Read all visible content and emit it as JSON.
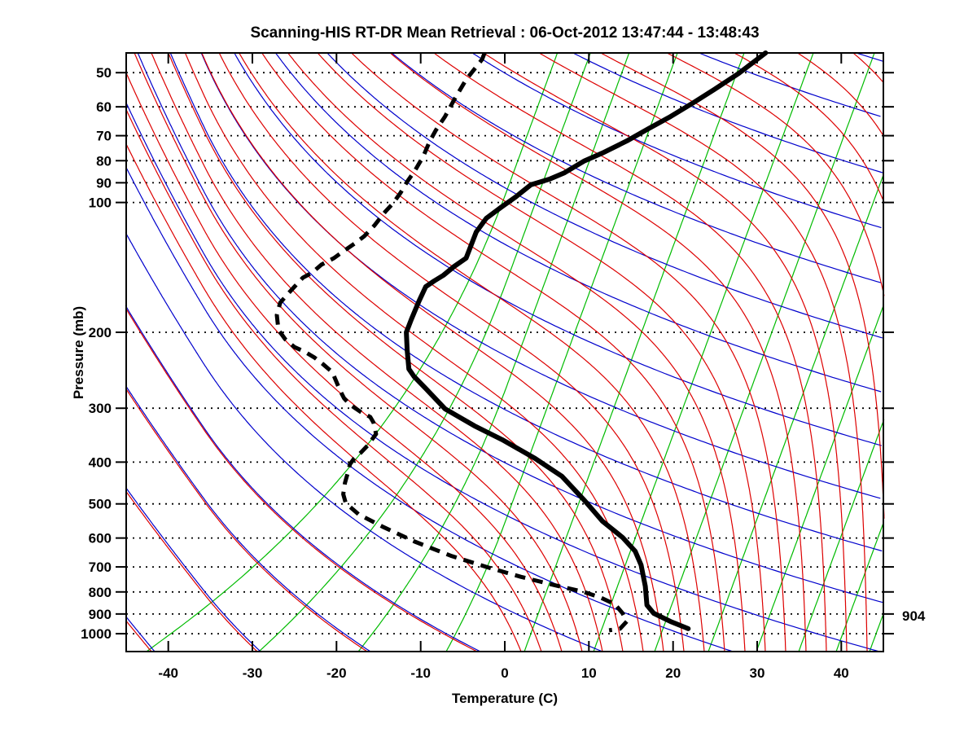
{
  "title": "Scanning-HIS RT-DR Mean Retrieval : 06-Oct-2012 13:47:44 - 13:48:43",
  "x_axis": {
    "label": "Temperature (C)",
    "ticks": [
      -40,
      -30,
      -20,
      -10,
      0,
      10,
      20,
      30,
      40
    ],
    "range": [
      -45,
      45
    ]
  },
  "y_axis": {
    "label": "Pressure (mb)",
    "ticks": [
      50,
      60,
      70,
      80,
      90,
      100,
      200,
      300,
      400,
      500,
      600,
      700,
      800,
      900,
      1000
    ],
    "range": [
      45,
      1100
    ],
    "scale": "log"
  },
  "annotation": {
    "text": "904"
  },
  "colors": {
    "profile_lines": "#000000",
    "red_lines": "#dd0000",
    "blue_lines": "#0000cc",
    "green_lines": "#00bb00",
    "grid_dots": "#000000",
    "background": "#ffffff"
  },
  "chart_data": {
    "type": "line",
    "subtype": "skew-T log-p atmospheric sounding",
    "title": "Scanning-HIS RT-DR Mean Retrieval : 06-Oct-2012 13:47:44 - 13:48:43",
    "xlabel": "Temperature (C)",
    "ylabel": "Pressure (mb)",
    "x_range_C": [
      -45,
      45
    ],
    "pressure_range_mb": [
      45,
      1100
    ],
    "y_scale": "log",
    "grid": "dotted horizontal isobars at labeled pressures",
    "background_lines": "red / blue adiabat pairs (merging when cold), green skewed isopleths",
    "surface_pressure_label": "904",
    "note": "points are [pressure_mb, temperature_C as plotted against skewed x-axis]",
    "series": [
      {
        "name": "Temperature (thick solid)",
        "style": "solid",
        "points": [
          [
            45,
            31.0
          ],
          [
            50.2,
            27.8
          ],
          [
            54.7,
            24.9
          ],
          [
            58.9,
            22.3
          ],
          [
            63.2,
            19.7
          ],
          [
            67.4,
            17.1
          ],
          [
            72,
            14.5
          ],
          [
            76.8,
            11.6
          ],
          [
            80.2,
            9.4
          ],
          [
            85.3,
            7.1
          ],
          [
            88.3,
            5.3
          ],
          [
            91,
            3.1
          ],
          [
            97.1,
            1.3
          ],
          [
            102.8,
            -0.5
          ],
          [
            108.8,
            -2.2
          ],
          [
            117.1,
            -3.4
          ],
          [
            134.6,
            -4.6
          ],
          [
            140.6,
            -6.0
          ],
          [
            147.5,
            -7.3
          ],
          [
            152.1,
            -8.4
          ],
          [
            156.8,
            -9.4
          ],
          [
            169.4,
            -10.2
          ],
          [
            186.5,
            -11.1
          ],
          [
            200,
            -11.7
          ],
          [
            220,
            -11.6
          ],
          [
            243.3,
            -11.4
          ],
          [
            253,
            -10.8
          ],
          [
            270,
            -9.4
          ],
          [
            301,
            -7.1
          ],
          [
            329.6,
            -3.6
          ],
          [
            354.9,
            -0.3
          ],
          [
            392.2,
            3.6
          ],
          [
            431.7,
            6.8
          ],
          [
            491.7,
            9.5
          ],
          [
            548.2,
            11.6
          ],
          [
            598.2,
            14.0
          ],
          [
            643.9,
            15.5
          ],
          [
            692.7,
            16.2
          ],
          [
            776.2,
            16.7
          ],
          [
            858.4,
            16.9
          ],
          [
            896.7,
            17.7
          ],
          [
            936.8,
            19.7
          ],
          [
            973.5,
            21.8
          ]
        ]
      },
      {
        "name": "Dew point (thick dashed)",
        "style": "dashed",
        "points": [
          [
            45,
            -2.4
          ],
          [
            46.6,
            -2.7
          ],
          [
            51.9,
            -4.6
          ],
          [
            57.7,
            -6.0
          ],
          [
            63.2,
            -7.1
          ],
          [
            68,
            -8.2
          ],
          [
            72,
            -8.9
          ],
          [
            78.2,
            -9.7
          ],
          [
            84.5,
            -10.7
          ],
          [
            89.5,
            -11.6
          ],
          [
            95,
            -12.4
          ],
          [
            100.5,
            -13.3
          ],
          [
            105,
            -14.2
          ],
          [
            113.1,
            -15.5
          ],
          [
            119.7,
            -16.7
          ],
          [
            123.9,
            -17.7
          ],
          [
            129.4,
            -19.1
          ],
          [
            134.6,
            -20.3
          ],
          [
            139.4,
            -21.8
          ],
          [
            145.5,
            -22.9
          ],
          [
            149.4,
            -24.0
          ],
          [
            156.8,
            -25.0
          ],
          [
            163.9,
            -25.9
          ],
          [
            170.9,
            -26.7
          ],
          [
            182.5,
            -27.1
          ],
          [
            197.4,
            -26.9
          ],
          [
            207.5,
            -26.1
          ],
          [
            216.5,
            -25.0
          ],
          [
            222.3,
            -23.7
          ],
          [
            229.1,
            -22.6
          ],
          [
            237.2,
            -21.6
          ],
          [
            247.5,
            -20.5
          ],
          [
            260.8,
            -20.0
          ],
          [
            272.3,
            -19.6
          ],
          [
            284.4,
            -19.1
          ],
          [
            294.4,
            -18.4
          ],
          [
            306.1,
            -17.1
          ],
          [
            314.2,
            -16.0
          ],
          [
            323.9,
            -15.6
          ],
          [
            344.3,
            -15.3
          ],
          [
            365.9,
            -16.3
          ],
          [
            381.9,
            -17.2
          ],
          [
            392.2,
            -17.9
          ],
          [
            404.2,
            -18.4
          ],
          [
            426.1,
            -18.7
          ],
          [
            446.9,
            -19.0
          ],
          [
            474.8,
            -19.2
          ],
          [
            498.1,
            -18.9
          ],
          [
            528.2,
            -17.4
          ],
          [
            565,
            -14.5
          ],
          [
            611.5,
            -10.7
          ],
          [
            660.8,
            -6.3
          ],
          [
            702.9,
            -1.9
          ],
          [
            737.9,
            1.9
          ],
          [
            770.6,
            5.8
          ],
          [
            797.9,
            9.2
          ],
          [
            822.9,
            11.3
          ],
          [
            854.6,
            13.1
          ],
          [
            896.7,
            14.0
          ],
          [
            936.8,
            14.5
          ],
          [
            973.5,
            13.7
          ],
          [
            981.9,
            12.4
          ]
        ]
      }
    ]
  }
}
